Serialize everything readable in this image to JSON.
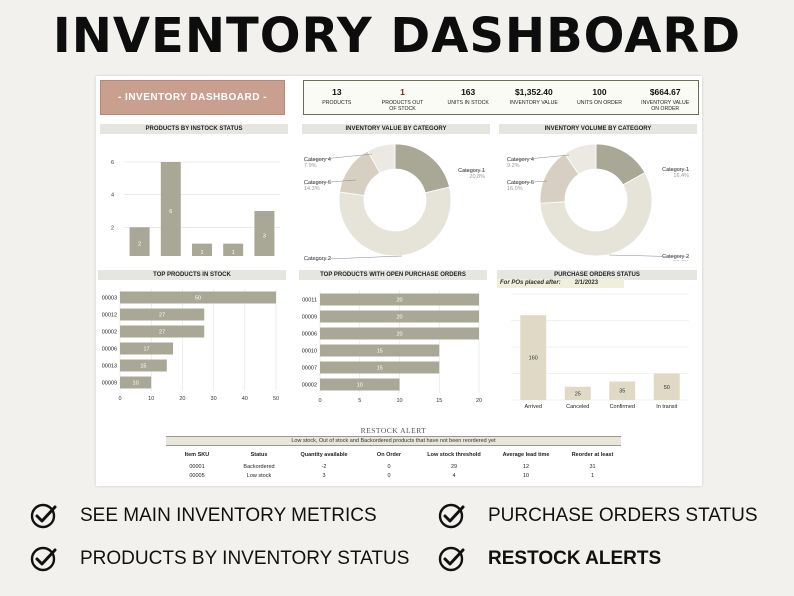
{
  "hero_title": "INVENTORY DASHBOARD",
  "banner": "- INVENTORY DASHBOARD -",
  "kpis": [
    {
      "value": "13",
      "label": "PRODUCTS",
      "highlight": false
    },
    {
      "value": "1",
      "label": "PRODUCTS OUT OF STOCK",
      "highlight": true
    },
    {
      "value": "163",
      "label": "UNITS IN STOCK",
      "highlight": false
    },
    {
      "value": "$1,352.40",
      "label": "INVENTORY VALUE",
      "highlight": false
    },
    {
      "value": "100",
      "label": "UNITS ON ORDER",
      "highlight": false
    },
    {
      "value": "$664.67",
      "label": "INVENTORY VALUE ON ORDER",
      "highlight": false
    }
  ],
  "panels": {
    "instock": "PRODUCTS BY INSTOCK STATUS",
    "value_by_category": "INVENTORY VALUE BY CATEGORY",
    "volume_by_category": "INVENTORY VOLUME BY CATEGORY",
    "top_in_stock": "TOP PRODUCTS IN STOCK",
    "top_open_po": "TOP PRODUCTS WITH OPEN PURCHASE ORDERS",
    "po_status": "PURCHASE ORDERS STATUS"
  },
  "po_filter": {
    "label": "For POs placed after:",
    "value": "2/1/2023"
  },
  "colors": {
    "bar": "#a9a896",
    "bar_light": "#dfd9c6",
    "banner": "#c9a090",
    "donut_1": "#e6e3d9",
    "donut_2": "#d8cfc3",
    "donut_4": "#a9a896"
  },
  "chart_data": [
    {
      "type": "bar",
      "title": "PRODUCTS BY INSTOCK STATUS",
      "categories": [
        "Backordered",
        "In stock",
        "Low stock",
        "Out of stock",
        "Overstock"
      ],
      "values": [
        2,
        6,
        1,
        1,
        3
      ],
      "ylim": [
        0,
        6
      ],
      "yticks": [
        0,
        2,
        4,
        6
      ],
      "grid": true
    },
    {
      "type": "pie",
      "title": "INVENTORY VALUE BY CATEGORY",
      "slices": [
        {
          "label": "Category 1",
          "pct": "20.8%",
          "value": 20.8
        },
        {
          "label": "Category 2",
          "pct": "54.7%",
          "value": 54.7
        },
        {
          "label": "Category 6",
          "pct": "14.3%",
          "value": 14.3
        },
        {
          "label": "Category 4",
          "pct": "7.9%",
          "value": 7.9
        }
      ]
    },
    {
      "type": "pie",
      "title": "INVENTORY VOLUME BY CATEGORY",
      "slices": [
        {
          "label": "Category 1",
          "pct": "16.4%",
          "value": 16.4
        },
        {
          "label": "Category 2",
          "pct": "55.6%",
          "value": 55.6
        },
        {
          "label": "Category 6",
          "pct": "16.0%",
          "value": 16.0
        },
        {
          "label": "Category 4",
          "pct": "9.2%",
          "value": 9.2
        }
      ]
    },
    {
      "type": "bar",
      "orientation": "horizontal",
      "title": "TOP PRODUCTS IN STOCK",
      "categories": [
        "00003",
        "00012",
        "00002",
        "00006",
        "00013",
        "00009"
      ],
      "values": [
        50,
        27,
        27,
        17,
        15,
        10
      ],
      "xlim": [
        0,
        50
      ],
      "xticks": [
        0,
        10,
        20,
        30,
        40,
        50
      ]
    },
    {
      "type": "bar",
      "orientation": "horizontal",
      "title": "TOP PRODUCTS WITH OPEN PURCHASE ORDERS",
      "categories": [
        "00011",
        "00009",
        "00006",
        "00010",
        "00007",
        "00002"
      ],
      "values": [
        20,
        20,
        20,
        15,
        15,
        10
      ],
      "xlim": [
        0,
        20
      ],
      "xticks": [
        0,
        5,
        10,
        15,
        20
      ]
    },
    {
      "type": "bar",
      "title": "PURCHASE ORDERS STATUS",
      "categories": [
        "Arrived",
        "Canceled",
        "Confirmed",
        "In transit"
      ],
      "values": [
        160,
        25,
        35,
        50
      ],
      "ylim": [
        0,
        200
      ]
    }
  ],
  "restock": {
    "title": "RESTOCK ALERT",
    "subtitle": "Low stock, Out of stock and Backordered products that have not been reordered yet",
    "headers": [
      "Item SKU",
      "Status",
      "Quantity available",
      "On Order",
      "Low stock threshold",
      "Average lead time",
      "Reorder at least"
    ],
    "rows": [
      [
        "00001",
        "Backordered",
        "-2",
        "0",
        "29",
        "12",
        "31"
      ],
      [
        "00005",
        "Low stock",
        "3",
        "0",
        "4",
        "10",
        "1"
      ]
    ]
  },
  "features": [
    {
      "label": "SEE MAIN INVENTORY METRICS",
      "bold": false
    },
    {
      "label": "PURCHASE ORDERS STATUS",
      "bold": false
    },
    {
      "label": "PRODUCTS BY INVENTORY STATUS",
      "bold": false
    },
    {
      "label": "RESTOCK ALERTS",
      "bold": true
    }
  ]
}
